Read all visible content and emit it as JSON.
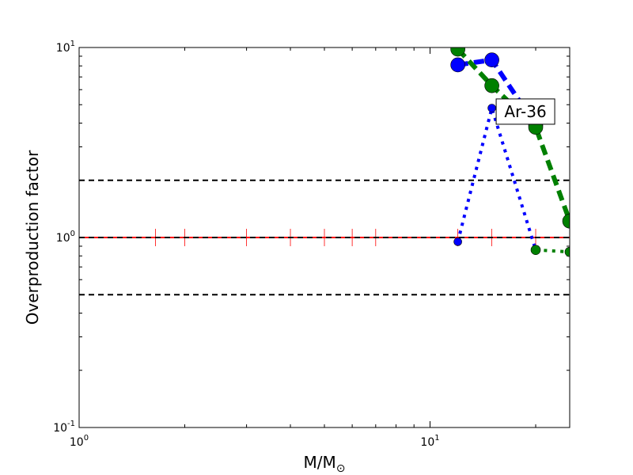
{
  "chart_data": {
    "type": "line",
    "title": "",
    "xlabel": "M/M",
    "xlabel_subscript": "⊙",
    "ylabel": "Overproduction factor",
    "xscale": "log",
    "yscale": "log",
    "xlim": [
      1,
      25
    ],
    "ylim": [
      0.1,
      10
    ],
    "x_tick_labels": [
      {
        "value": 1,
        "base": "10",
        "exp": "0"
      },
      {
        "value": 10,
        "base": "10",
        "exp": "1"
      }
    ],
    "y_tick_labels": [
      {
        "value": 0.1,
        "base": "10",
        "exp": "-1"
      },
      {
        "value": 1,
        "base": "10",
        "exp": "0"
      },
      {
        "value": 10,
        "base": "10",
        "exp": "1"
      }
    ],
    "reference_lines": [
      {
        "y": 2.0,
        "style": "dashed",
        "color": "#000000"
      },
      {
        "y": 1.0,
        "style": "dashed",
        "color": "#000000"
      },
      {
        "y": 0.5,
        "style": "dashed",
        "color": "#000000"
      }
    ],
    "red_line": {
      "y": 1.0,
      "color": "#ff0000",
      "marker_x": [
        1.65,
        2,
        3,
        4,
        5,
        6,
        7,
        12,
        15,
        20,
        25
      ]
    },
    "series": [
      {
        "color": "#0000ff",
        "style": "dotted",
        "linewidth": 4,
        "markersize": 5,
        "x": [
          12,
          15,
          20
        ],
        "y": [
          0.95,
          4.8,
          0.86
        ]
      },
      {
        "color": "#0000ff",
        "style": "dashed",
        "linewidth": 6,
        "markersize": 9,
        "x": [
          12,
          15,
          20
        ],
        "y": [
          8.1,
          8.6,
          3.9
        ]
      },
      {
        "color": "#008000",
        "style": "dotted",
        "linewidth": 4,
        "markersize": 6,
        "x": [
          20,
          25
        ],
        "y": [
          0.86,
          0.84
        ]
      },
      {
        "color": "#008000",
        "style": "dashed",
        "linewidth": 6,
        "markersize": 9,
        "x": [
          12,
          15,
          20,
          25
        ],
        "y": [
          9.8,
          6.3,
          3.8,
          1.22
        ]
      }
    ],
    "annotations": [
      {
        "text": "Ar-36",
        "x": 18.7,
        "y": 4.6
      }
    ]
  }
}
